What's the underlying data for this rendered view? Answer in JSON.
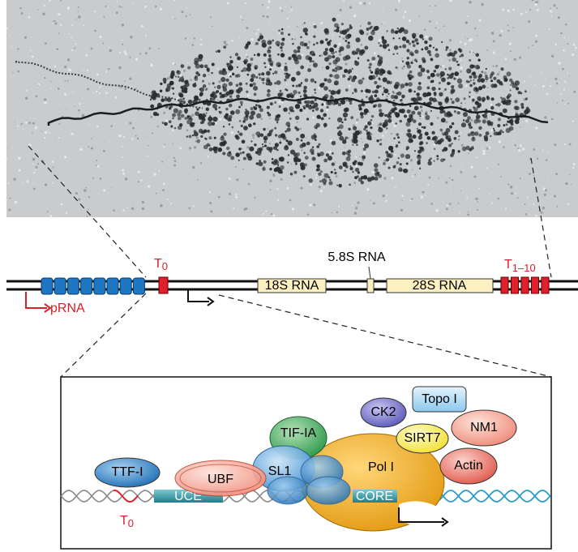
{
  "gene_map": {
    "t0": {
      "base": "T",
      "sub": "0"
    },
    "rna_5_8s": "5.8S RNA",
    "t1_10": {
      "base": "T",
      "sub": "1–10"
    },
    "rna_18s": "18S RNA",
    "rna_28s": "28S RNA",
    "prna": "pRNA"
  },
  "promoter": {
    "topo": "Topo I",
    "ck2": "CK2",
    "nm1": "NM1",
    "tif_ia": "TIF-IA",
    "sirt7": "SIRT7",
    "actin": "Actin",
    "ttf_i": "TTF-I",
    "ubf": "UBF",
    "sl1": "SL1",
    "pol_i": "Pol I",
    "uce": "UCE",
    "core": "CORE",
    "t0": {
      "base": "T",
      "sub": "0"
    }
  }
}
